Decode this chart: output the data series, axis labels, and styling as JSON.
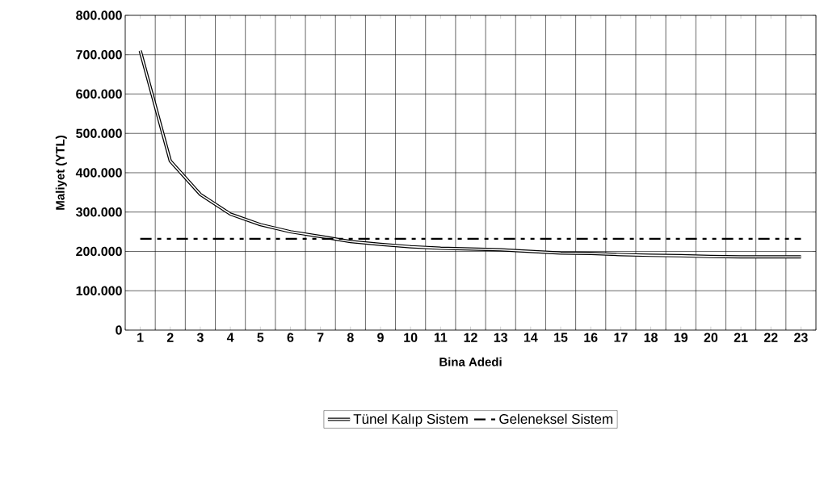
{
  "chart_data": {
    "type": "line",
    "xlabel": "Bina Adedi",
    "ylabel": "Maliyet (YTL)",
    "categories": [
      "1",
      "2",
      "3",
      "4",
      "5",
      "6",
      "7",
      "8",
      "9",
      "10",
      "11",
      "12",
      "13",
      "14",
      "15",
      "16",
      "17",
      "18",
      "19",
      "20",
      "21",
      "22",
      "23"
    ],
    "series": [
      {
        "name": "Tünel Kalıp Sistem",
        "color": "#000000",
        "line_style": "solid",
        "values": [
          710000,
          430000,
          345000,
          295000,
          268000,
          250000,
          238000,
          225000,
          218000,
          212000,
          208000,
          206000,
          204000,
          200000,
          196000,
          195000,
          192000,
          190000,
          189000,
          187000,
          186000,
          186000,
          186000
        ]
      },
      {
        "name": "Geleneksel Sistem",
        "color": "#000000",
        "line_style": "dashed",
        "values": [
          232000,
          232000,
          232000,
          232000,
          232000,
          232000,
          232000,
          232000,
          232000,
          232000,
          232000,
          232000,
          232000,
          232000,
          232000,
          232000,
          232000,
          232000,
          232000,
          232000,
          232000,
          232000,
          232000
        ]
      }
    ],
    "ylim": [
      0,
      800000
    ],
    "yticks": [
      {
        "value": 0,
        "label": "0"
      },
      {
        "value": 100000,
        "label": "100.000"
      },
      {
        "value": 200000,
        "label": "200.000"
      },
      {
        "value": 300000,
        "label": "300.000"
      },
      {
        "value": 400000,
        "label": "400.000"
      },
      {
        "value": 500000,
        "label": "500.000"
      },
      {
        "value": 600000,
        "label": "600.000"
      },
      {
        "value": 700000,
        "label": "700.000"
      },
      {
        "value": 800000,
        "label": "800.000"
      }
    ],
    "grid": true,
    "legend": "bottom",
    "marker": "none"
  }
}
